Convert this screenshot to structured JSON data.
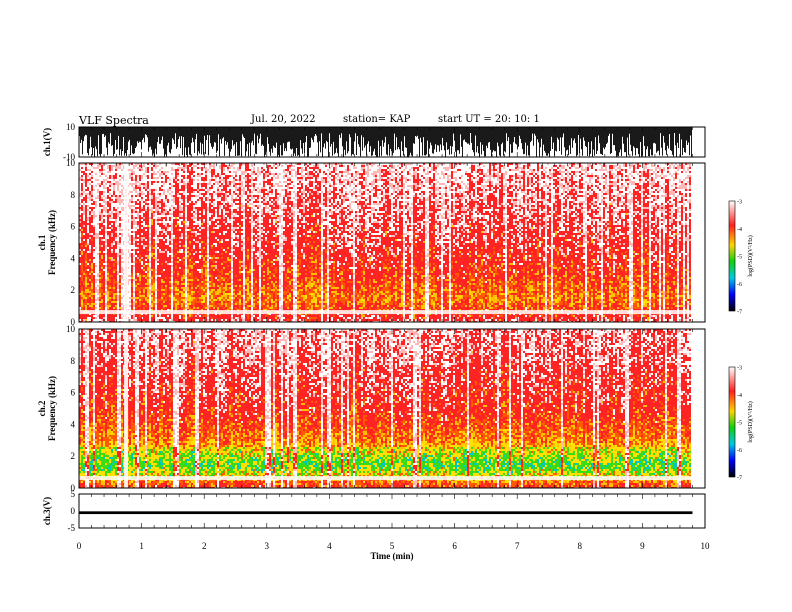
{
  "header": {
    "title": "VLF Spectra",
    "date": "Jul. 20, 2022",
    "station": "station= KAP",
    "start": "start  UT =  20: 10: 1"
  },
  "chart_data": {
    "type": "heatmap",
    "x_axis": {
      "label": "Time  (min)",
      "range": [
        0,
        10
      ],
      "ticks": [
        "0",
        "1",
        "2",
        "3",
        "4",
        "5",
        "6",
        "7",
        "8",
        "9",
        "10"
      ],
      "data_end_min": 9.8
    },
    "panels": [
      {
        "name": "ch1-waveform",
        "type": "line",
        "ylabel": "ch.1(V)",
        "ylim": [
          -10,
          10
        ],
        "yticks": [
          "10",
          "-10"
        ],
        "signal": "saturated waveform, mostly clipped at the upper limit (~+10 V) with dense dropouts toward the lower limit",
        "color": "#000000"
      },
      {
        "name": "ch1-spectrogram",
        "type": "heatmap",
        "ylabel": "ch.1\nFrequency  (kHz)",
        "ylim": [
          0,
          10
        ],
        "yticks": [
          "0",
          "2",
          "4",
          "6",
          "8",
          "10"
        ],
        "colorbar": {
          "label": "log(PSD)(V²/Hz)",
          "range": [
            -7,
            -3
          ],
          "ticks": [
            "-3",
            "-4",
            "-5",
            "-6",
            "-7"
          ]
        },
        "intensity_profile": [
          {
            "freq_khz": 0.0,
            "log_psd": -3.3
          },
          {
            "freq_khz": 1.5,
            "log_psd": -3.9
          },
          {
            "freq_khz": 3.0,
            "log_psd": -3.6
          },
          {
            "freq_khz": 5.0,
            "log_psd": -3.4
          },
          {
            "freq_khz": 10.0,
            "log_psd": -3.1
          }
        ]
      },
      {
        "name": "ch2-spectrogram",
        "type": "heatmap",
        "ylabel": "ch.2\nFrequency  (kHz)",
        "ylim": [
          0,
          10
        ],
        "yticks": [
          "0",
          "2",
          "4",
          "6",
          "8",
          "10"
        ],
        "colorbar": {
          "label": "log(PSD)(V²/Hz)",
          "range": [
            -7,
            -3
          ],
          "ticks": [
            "-3",
            "-4",
            "-5",
            "-6",
            "-7"
          ]
        },
        "intensity_profile": [
          {
            "freq_khz": 0.0,
            "log_psd": -3.5
          },
          {
            "freq_khz": 1.5,
            "log_psd": -4.6
          },
          {
            "freq_khz": 3.0,
            "log_psd": -3.9
          },
          {
            "freq_khz": 5.0,
            "log_psd": -3.5
          },
          {
            "freq_khz": 10.0,
            "log_psd": -3.2
          }
        ]
      },
      {
        "name": "ch3-waveform",
        "type": "line",
        "ylabel": "ch.3(V)",
        "ylim": [
          -5,
          5
        ],
        "yticks": [
          "5",
          "0",
          "-5"
        ],
        "signal": "narrow band near -0.5 V",
        "band_v": [
          -0.9,
          -0.1
        ],
        "color": "#000000"
      }
    ],
    "colormap": [
      "#ffffff",
      "#ff0000",
      "#ffff00",
      "#00ff00",
      "#00ffff",
      "#0000ff",
      "#000000"
    ],
    "grid": false
  }
}
